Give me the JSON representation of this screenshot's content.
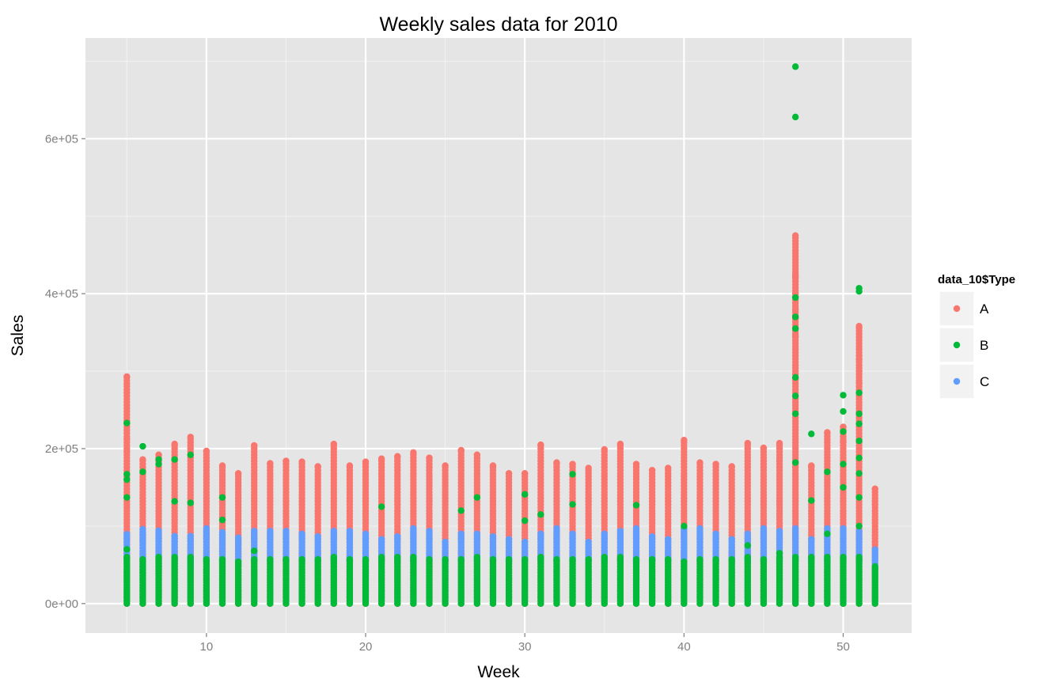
{
  "chart_data": {
    "type": "scatter",
    "title": "Weekly sales data for 2010",
    "xlabel": "Week",
    "ylabel": "Sales",
    "xlim": [
      2.4,
      54.3
    ],
    "ylim": [
      -38000,
      730000
    ],
    "x_ticks": [
      10,
      20,
      30,
      40,
      50
    ],
    "x_tick_labels": [
      "10",
      "20",
      "30",
      "40",
      "50"
    ],
    "y_ticks": [
      0,
      200000,
      400000,
      600000
    ],
    "y_tick_labels": [
      "0e+00",
      "2e+05",
      "4e+05",
      "6e+05"
    ],
    "grid": true,
    "legend": {
      "title": "data_10$Type",
      "position": "right"
    },
    "series": [
      {
        "name": "A",
        "color": "#F8766D",
        "weeks": [
          5,
          6,
          7,
          8,
          9,
          10,
          11,
          12,
          13,
          14,
          15,
          16,
          17,
          18,
          19,
          20,
          21,
          22,
          23,
          24,
          25,
          26,
          27,
          28,
          29,
          30,
          31,
          32,
          33,
          34,
          35,
          36,
          37,
          38,
          39,
          40,
          41,
          42,
          43,
          44,
          45,
          46,
          47,
          48,
          49,
          50,
          51,
          52
        ],
        "max": [
          293000,
          186000,
          192000,
          206000,
          215000,
          197000,
          178000,
          168000,
          204000,
          181000,
          184000,
          183000,
          177000,
          206000,
          178000,
          183000,
          187000,
          190000,
          195000,
          188000,
          178000,
          198000,
          192000,
          178000,
          168000,
          168000,
          205000,
          182000,
          180000,
          175000,
          199000,
          206000,
          180000,
          172000,
          175000,
          211000,
          182000,
          180000,
          177000,
          207000,
          201000,
          207000,
          475000,
          178000,
          221000,
          228000,
          358000,
          148000
        ],
        "outliers": [
          [
            5,
            213000
          ],
          [
            5,
            197000
          ],
          [
            47,
            422000
          ],
          [
            47,
            400000
          ],
          [
            47,
            380000
          ],
          [
            47,
            368000
          ],
          [
            47,
            345000
          ],
          [
            47,
            290000
          ],
          [
            51,
            315000
          ],
          [
            51,
            300000
          ],
          [
            51,
            285000
          ],
          [
            50,
            210000
          ]
        ]
      },
      {
        "name": "B",
        "color": "#00BA38",
        "weeks": [
          5,
          6,
          7,
          8,
          9,
          10,
          11,
          12,
          13,
          14,
          15,
          16,
          17,
          18,
          19,
          20,
          21,
          22,
          23,
          24,
          25,
          26,
          27,
          28,
          29,
          30,
          31,
          32,
          33,
          34,
          35,
          36,
          37,
          38,
          39,
          40,
          41,
          42,
          43,
          44,
          45,
          46,
          47,
          48,
          49,
          50,
          51,
          52
        ],
        "max": [
          60000,
          58000,
          60000,
          60000,
          60000,
          58000,
          57000,
          56000,
          58000,
          57000,
          57000,
          58000,
          57000,
          60000,
          58000,
          57000,
          60000,
          60000,
          60000,
          58000,
          57000,
          58000,
          60000,
          57000,
          57000,
          57000,
          60000,
          58000,
          58000,
          57000,
          60000,
          60000,
          58000,
          57000,
          57000,
          56000,
          57000,
          57000,
          57000,
          60000,
          58000,
          60000,
          62000,
          62000,
          60000,
          62000,
          62000,
          50000
        ],
        "outliers": [
          [
            47,
            693000
          ],
          [
            47,
            628000
          ],
          [
            47,
            395000
          ],
          [
            47,
            370000
          ],
          [
            47,
            355000
          ],
          [
            47,
            292000
          ],
          [
            47,
            268000
          ],
          [
            47,
            245000
          ],
          [
            47,
            182000
          ],
          [
            51,
            407000
          ],
          [
            51,
            403000
          ],
          [
            51,
            272000
          ],
          [
            51,
            245000
          ],
          [
            51,
            232000
          ],
          [
            51,
            210000
          ],
          [
            51,
            188000
          ],
          [
            51,
            168000
          ],
          [
            51,
            137000
          ],
          [
            51,
            100000
          ],
          [
            5,
            233000
          ],
          [
            5,
            167000
          ],
          [
            5,
            160000
          ],
          [
            5,
            137000
          ],
          [
            5,
            70000
          ],
          [
            6,
            203000
          ],
          [
            6,
            170000
          ],
          [
            7,
            186000
          ],
          [
            7,
            180000
          ],
          [
            8,
            186000
          ],
          [
            8,
            132000
          ],
          [
            9,
            192000
          ],
          [
            9,
            130000
          ],
          [
            11,
            137000
          ],
          [
            11,
            108000
          ],
          [
            13,
            68000
          ],
          [
            21,
            125000
          ],
          [
            26,
            120000
          ],
          [
            27,
            137000
          ],
          [
            30,
            141000
          ],
          [
            30,
            107000
          ],
          [
            31,
            115000
          ],
          [
            33,
            167000
          ],
          [
            33,
            128000
          ],
          [
            37,
            127000
          ],
          [
            40,
            100000
          ],
          [
            44,
            75000
          ],
          [
            46,
            65000
          ],
          [
            48,
            219000
          ],
          [
            48,
            133000
          ],
          [
            49,
            170000
          ],
          [
            49,
            90000
          ],
          [
            50,
            269000
          ],
          [
            50,
            248000
          ],
          [
            50,
            222000
          ],
          [
            50,
            180000
          ],
          [
            50,
            150000
          ]
        ]
      },
      {
        "name": "C",
        "color": "#619CFF",
        "weeks": [
          5,
          6,
          7,
          8,
          9,
          10,
          11,
          12,
          13,
          14,
          15,
          16,
          17,
          18,
          19,
          20,
          21,
          22,
          23,
          24,
          25,
          26,
          27,
          28,
          29,
          30,
          31,
          32,
          33,
          34,
          35,
          36,
          37,
          38,
          39,
          40,
          41,
          42,
          43,
          44,
          45,
          46,
          47,
          48,
          49,
          50,
          51,
          52
        ],
        "low": [
          58000,
          40000,
          45000,
          45000,
          45000,
          55000,
          50000,
          50000,
          55000,
          55000,
          55000,
          55000,
          55000,
          55000,
          55000,
          55000,
          55000,
          55000,
          55000,
          55000,
          55000,
          55000,
          55000,
          55000,
          55000,
          55000,
          55000,
          55000,
          55000,
          55000,
          55000,
          55000,
          55000,
          55000,
          55000,
          55000,
          55000,
          55000,
          55000,
          55000,
          55000,
          55000,
          55000,
          55000,
          55000,
          55000,
          55000,
          45000
        ],
        "high": [
          90000,
          98000,
          95000,
          87000,
          90000,
          98000,
          92000,
          85000,
          95000,
          95000,
          95000,
          92000,
          88000,
          95000,
          95000,
          90000,
          85000,
          87000,
          97000,
          95000,
          82000,
          90000,
          92000,
          87000,
          85000,
          80000,
          92000,
          97000,
          92000,
          82000,
          90000,
          95000,
          98000,
          87000,
          85000,
          98000,
          97000,
          90000,
          85000,
          90000,
          100000,
          95000,
          98000,
          85000,
          100000,
          97000,
          95000,
          70000
        ]
      }
    ]
  }
}
